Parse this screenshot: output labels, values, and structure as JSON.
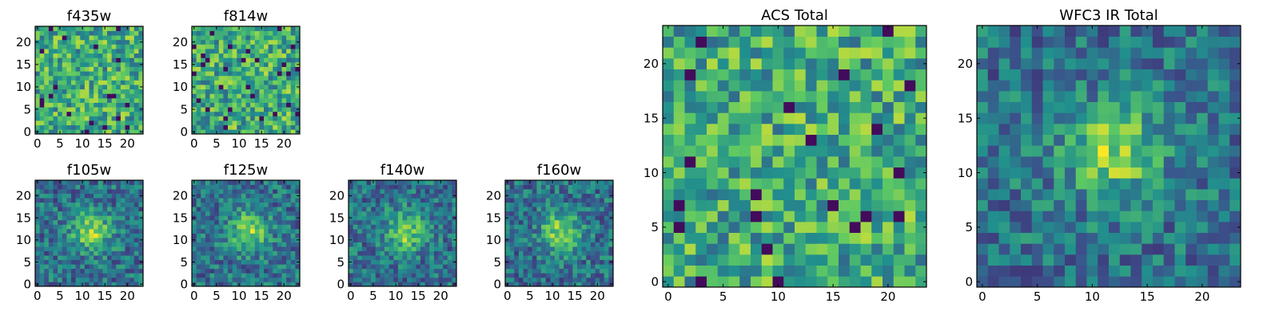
{
  "colormap": {
    "name": "viridis",
    "stops": [
      "#440154",
      "#3b528b",
      "#21908d",
      "#5dc963",
      "#fde725"
    ]
  },
  "chart_data": [
    {
      "type": "heatmap",
      "title": "f435w",
      "xlabel": "",
      "ylabel": "",
      "grid_size": [
        24,
        24
      ],
      "xlim": [
        -0.5,
        23.5
      ],
      "ylim": [
        -0.5,
        23.5
      ],
      "xticks": [
        0,
        5,
        10,
        15,
        20
      ],
      "yticks": [
        0,
        5,
        10,
        15,
        20
      ],
      "pattern": "noise",
      "seed": 11
    },
    {
      "type": "heatmap",
      "title": "f814w",
      "xlabel": "",
      "ylabel": "",
      "grid_size": [
        24,
        24
      ],
      "xlim": [
        -0.5,
        23.5
      ],
      "ylim": [
        -0.5,
        23.5
      ],
      "xticks": [
        0,
        5,
        10,
        15,
        20
      ],
      "yticks": [
        0,
        5,
        10,
        15,
        20
      ],
      "pattern": "noise",
      "seed": 23
    },
    {
      "type": "heatmap",
      "title": "f105w",
      "xlabel": "",
      "ylabel": "",
      "grid_size": [
        24,
        24
      ],
      "xlim": [
        -0.5,
        23.5
      ],
      "ylim": [
        -0.5,
        23.5
      ],
      "xticks": [
        0,
        5,
        10,
        15,
        20
      ],
      "yticks": [
        0,
        5,
        10,
        15,
        20
      ],
      "pattern": "source",
      "seed": 37
    },
    {
      "type": "heatmap",
      "title": "f125w",
      "xlabel": "",
      "ylabel": "",
      "grid_size": [
        24,
        24
      ],
      "xlim": [
        -0.5,
        23.5
      ],
      "ylim": [
        -0.5,
        23.5
      ],
      "xticks": [
        0,
        5,
        10,
        15,
        20
      ],
      "yticks": [
        0,
        5,
        10,
        15,
        20
      ],
      "pattern": "source",
      "seed": 41
    },
    {
      "type": "heatmap",
      "title": "f140w",
      "xlabel": "",
      "ylabel": "",
      "grid_size": [
        24,
        24
      ],
      "xlim": [
        -0.5,
        23.5
      ],
      "ylim": [
        -0.5,
        23.5
      ],
      "xticks": [
        0,
        5,
        10,
        15,
        20
      ],
      "yticks": [
        0,
        5,
        10,
        15,
        20
      ],
      "pattern": "source",
      "seed": 53
    },
    {
      "type": "heatmap",
      "title": "f160w",
      "xlabel": "",
      "ylabel": "",
      "grid_size": [
        24,
        24
      ],
      "xlim": [
        -0.5,
        23.5
      ],
      "ylim": [
        -0.5,
        23.5
      ],
      "xticks": [
        0,
        5,
        10,
        15,
        20
      ],
      "yticks": [
        0,
        5,
        10,
        15,
        20
      ],
      "pattern": "source",
      "seed": 67
    },
    {
      "type": "heatmap",
      "title": "ACS Total",
      "xlabel": "",
      "ylabel": "",
      "grid_size": [
        24,
        24
      ],
      "xlim": [
        -0.5,
        23.5
      ],
      "ylim": [
        -0.5,
        23.5
      ],
      "xticks": [
        0,
        5,
        10,
        15,
        20
      ],
      "yticks": [
        0,
        5,
        10,
        15,
        20
      ],
      "pattern": "noise",
      "seed": 79
    },
    {
      "type": "heatmap",
      "title": "WFC3 IR Total",
      "xlabel": "",
      "ylabel": "",
      "grid_size": [
        24,
        24
      ],
      "xlim": [
        -0.5,
        23.5
      ],
      "ylim": [
        -0.5,
        23.5
      ],
      "xticks": [
        0,
        5,
        10,
        15,
        20
      ],
      "yticks": [
        0,
        5,
        10,
        15,
        20
      ],
      "pattern": "source",
      "seed": 97
    }
  ]
}
